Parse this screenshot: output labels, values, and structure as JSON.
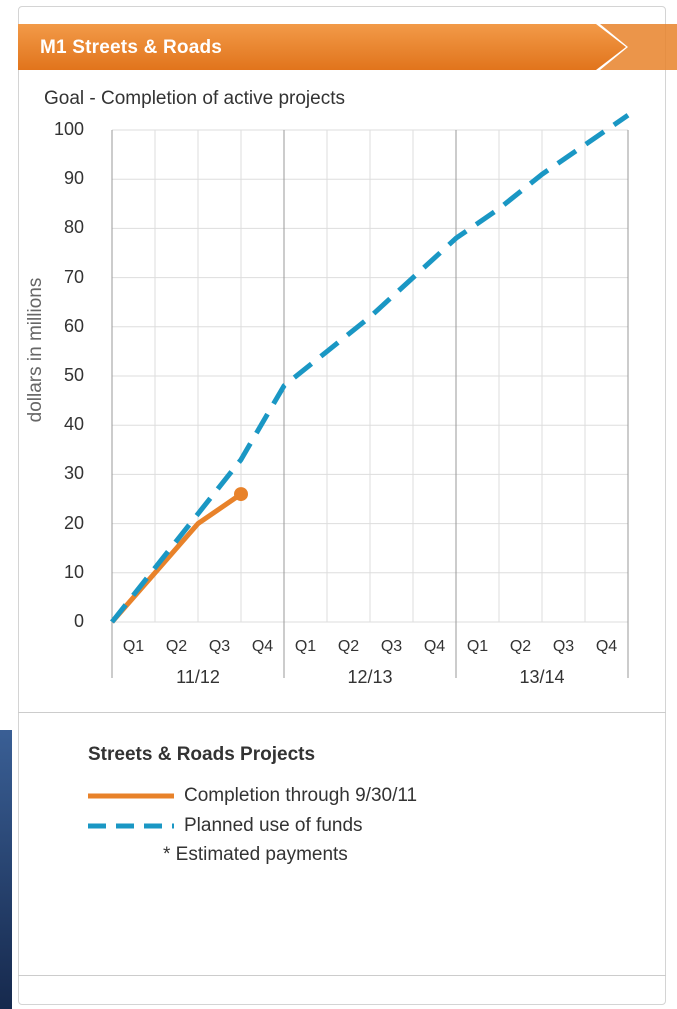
{
  "panel": {
    "title": "M1 Streets & Roads",
    "accent_color": "#e8822a"
  },
  "chart_data": {
    "type": "line",
    "title": "Goal - Completion of active projects",
    "ylabel": "dollars in millions",
    "ylim": [
      0,
      100
    ],
    "yticks": [
      0,
      10,
      20,
      30,
      40,
      50,
      60,
      70,
      80,
      90,
      100
    ],
    "x_quarters": [
      "Q1",
      "Q2",
      "Q3",
      "Q4",
      "Q1",
      "Q2",
      "Q3",
      "Q4",
      "Q1",
      "Q2",
      "Q3",
      "Q4"
    ],
    "x_years": [
      "11/12",
      "12/13",
      "13/14"
    ],
    "grid": true,
    "series": [
      {
        "name": "Completion through 9/30/11",
        "color": "#e8822a",
        "style": "solid",
        "x": [
          0,
          1,
          2,
          3
        ],
        "y": [
          0,
          10,
          20,
          26
        ],
        "end_marker": true
      },
      {
        "name": "Planned use of funds",
        "color": "#1a97c4",
        "style": "dashed",
        "x": [
          0,
          1,
          2,
          3,
          4,
          5,
          6,
          7,
          8,
          9,
          10,
          11,
          12
        ],
        "y": [
          0,
          11,
          22,
          33,
          48,
          55,
          62,
          70,
          78,
          84,
          91,
          97,
          103
        ]
      }
    ]
  },
  "legend": {
    "title": "Streets & Roads Projects",
    "note": "* Estimated payments"
  }
}
